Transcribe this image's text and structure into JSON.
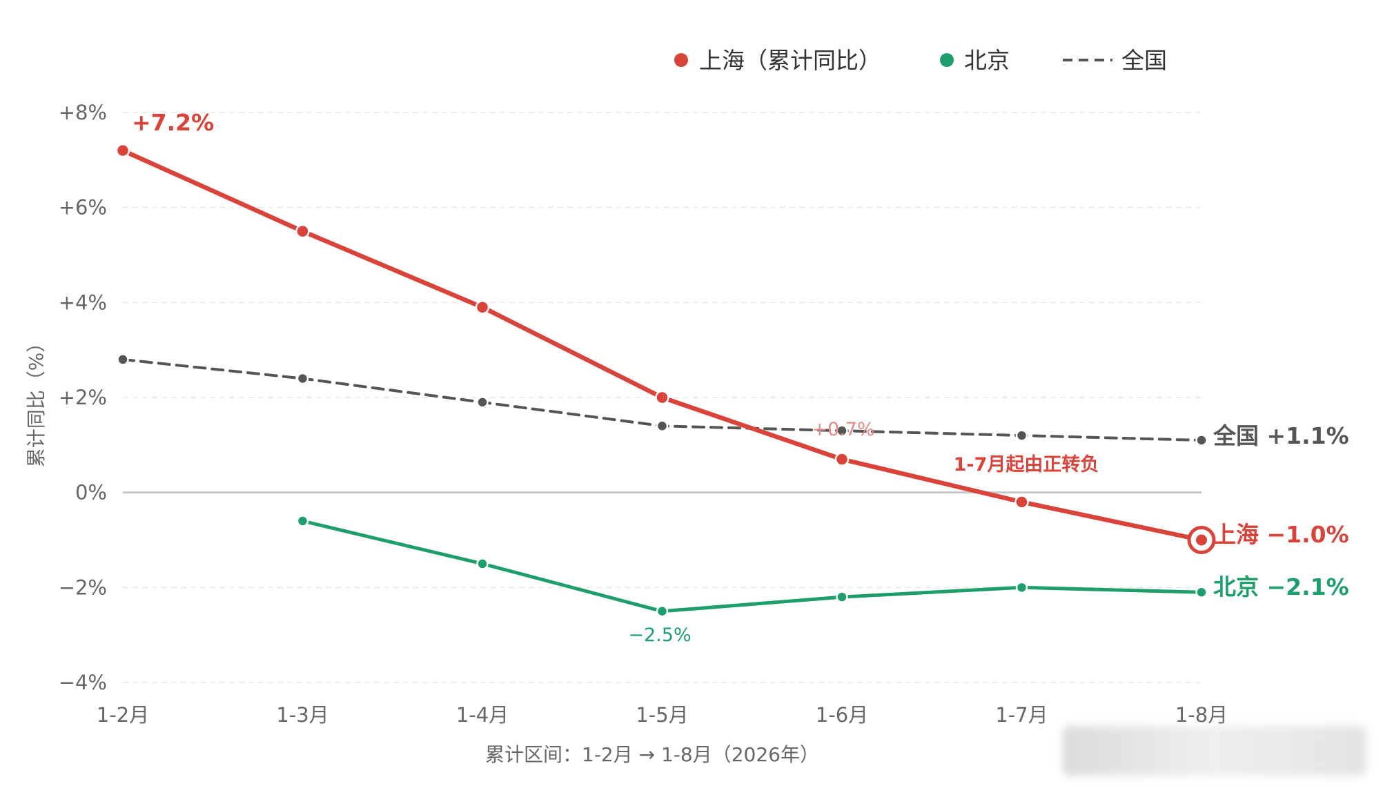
{
  "chart_data": {
    "type": "line",
    "categories": [
      "1-2月",
      "1-3月",
      "1-4月",
      "1-5月",
      "1-6月",
      "1-7月",
      "1-8月"
    ],
    "series": [
      {
        "name": "上海（累计同比）",
        "color": "#d9433a",
        "style": "solid",
        "values": [
          7.2,
          5.5,
          3.9,
          2.0,
          0.7,
          -0.2,
          -1.0
        ]
      },
      {
        "name": "北京",
        "color": "#1e9e6b",
        "style": "solid",
        "values": [
          null,
          -0.6,
          -1.5,
          -2.5,
          -2.2,
          -2.0,
          -2.1
        ]
      },
      {
        "name": "全国",
        "color": "#555555",
        "style": "dashed",
        "values": [
          2.8,
          2.4,
          1.9,
          1.4,
          1.3,
          1.2,
          1.1
        ]
      }
    ],
    "ylim": [
      -4,
      8
    ],
    "yticks": [
      "+8%",
      "+6%",
      "+4%",
      "+2%",
      "0%",
      "−2%",
      "−4%"
    ],
    "ytick_values": [
      8,
      6,
      4,
      2,
      0,
      -2,
      -4
    ],
    "ylabel": "累计同比（%）",
    "xlabel": "累计区间：1-2月 → 1-8月（2026年）",
    "grid": "horizontal-dashed",
    "legend_position": "top-right",
    "annotations": {
      "sh_start": "+7.2%",
      "sh_end": "上海 −1.0%",
      "bj_end": "北京 −2.1%",
      "nat_end": "全国 +1.1%",
      "bj_min": "−2.5%",
      "sh_mid": "+0.7%",
      "sh_cross": "1-7月起由正转负"
    }
  }
}
